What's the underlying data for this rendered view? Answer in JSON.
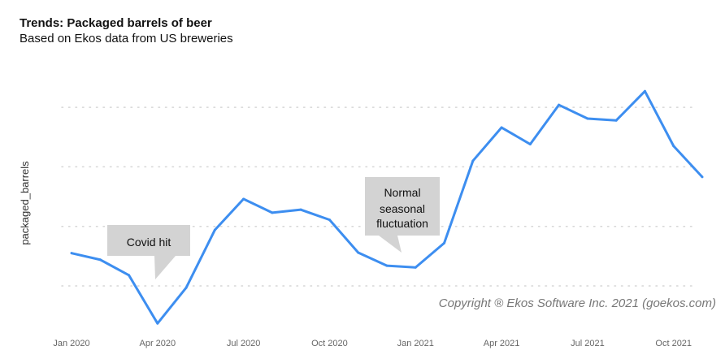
{
  "chart_data": {
    "type": "line",
    "title": "Trends: Packaged barrels of beer",
    "subtitle": "Based on Ekos data from US breweries",
    "xlabel": "",
    "ylabel": "packaged_barrels",
    "x": [
      "2020-01",
      "2020-02",
      "2020-03",
      "2020-04",
      "2020-05",
      "2020-06",
      "2020-07",
      "2020-08",
      "2020-09",
      "2020-10",
      "2020-11",
      "2020-12",
      "2021-01",
      "2021-02",
      "2021-03",
      "2021-04",
      "2021-05",
      "2021-06",
      "2021-07",
      "2021-08",
      "2021-09",
      "2021-10",
      "2021-11"
    ],
    "x_tick_labels": [
      "Jan 2020",
      "Apr 2020",
      "Jul 2020",
      "Oct 2020",
      "Jan 2021",
      "Apr 2021",
      "Jul 2021",
      "Oct 2021"
    ],
    "x_tick_index": [
      0,
      3,
      6,
      9,
      12,
      15,
      18,
      21
    ],
    "series": [
      {
        "name": "packaged_barrels",
        "color": "#3d8ef0",
        "values": [
          1.55,
          1.44,
          1.18,
          0.37,
          0.97,
          1.94,
          2.46,
          2.23,
          2.28,
          2.11,
          1.56,
          1.34,
          1.31,
          1.72,
          3.1,
          3.66,
          3.38,
          4.04,
          3.81,
          3.78,
          4.27,
          3.35,
          2.83
        ]
      }
    ],
    "y_units_note_hidden": null,
    "gridlines": [
      1,
      2,
      3,
      4
    ],
    "grid": true,
    "ylim": [
      0,
      5
    ],
    "annotations": [
      {
        "lines": [
          "Covid hit"
        ],
        "point_index": 3
      },
      {
        "lines": [
          "Normal",
          "seasonal",
          "fluctuation"
        ],
        "point_index": 11
      }
    ],
    "copyright": "Copyright ® Ekos Software Inc. 2021 (goekos.com)"
  }
}
